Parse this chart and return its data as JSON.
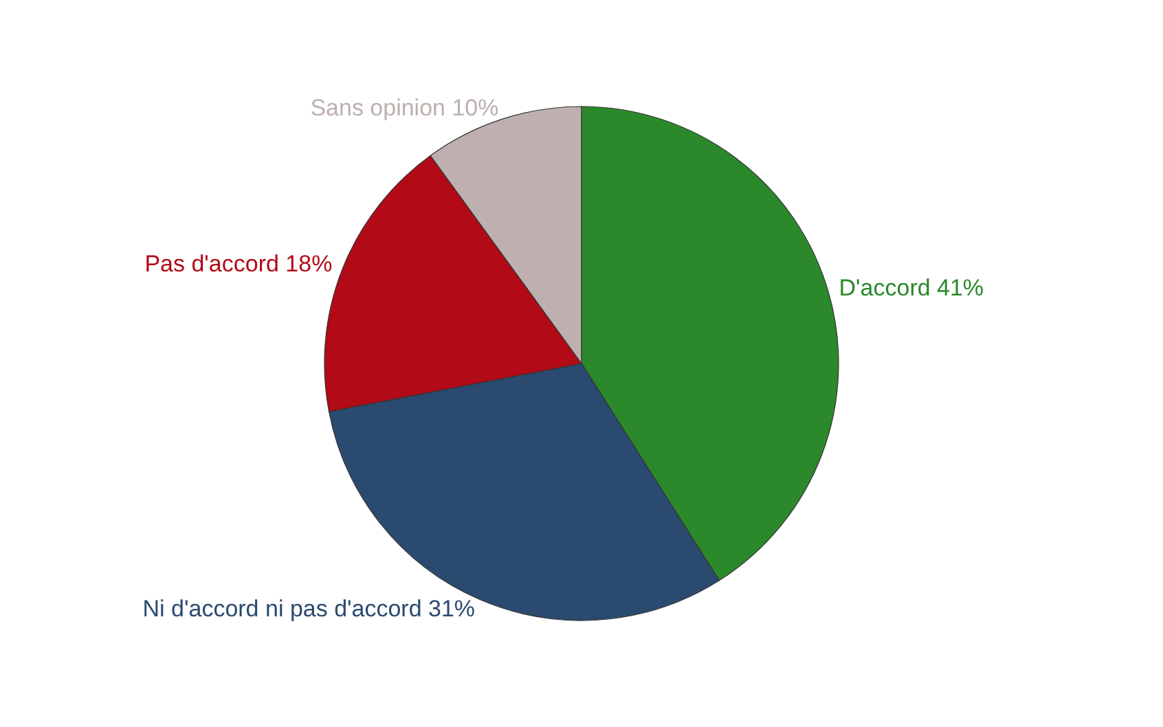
{
  "chart_data": {
    "type": "pie",
    "categories": [
      "D'accord",
      "Ni d'accord ni pas d'accord",
      "Pas d'accord",
      "Sans opinion"
    ],
    "values": [
      41,
      31,
      18,
      10
    ],
    "value_labels": [
      "41%",
      "31%",
      "18%",
      "10%"
    ],
    "colors": [
      "#2b882b",
      "#2a4a6f",
      "#b20a16",
      "#bdb0ae"
    ]
  }
}
